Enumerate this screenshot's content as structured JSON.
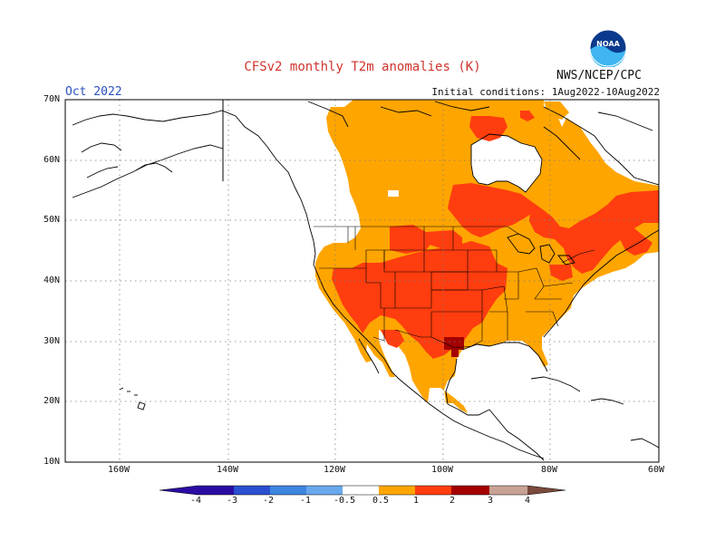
{
  "header": {
    "title": "CFSv2 monthly T2m anomalies (K)",
    "month": "Oct 2022",
    "source": "NWS/NCEP/CPC",
    "initial_conditions": "Initial conditions: 1Aug2022-10Aug2022",
    "logo_text": "NOAA"
  },
  "map": {
    "lat_labels": [
      "70N",
      "60N",
      "50N",
      "40N",
      "30N",
      "20N",
      "10N"
    ],
    "lon_labels": [
      "160W",
      "140W",
      "120W",
      "100W",
      "80W",
      "60W"
    ],
    "colors": {
      "ocean": "#ffffff",
      "coast": "#000000",
      "grid": "#7a7a7a",
      "anom_0_5_1": "#ffa500",
      "anom_1_2": "#ff3d0f",
      "anom_2_3": "#a40000"
    }
  },
  "colorbar": {
    "labels": [
      "-4",
      "-3",
      "-2",
      "-1",
      "-0.5",
      "0.5",
      "1",
      "2",
      "3",
      "4"
    ],
    "colors": [
      "#2b0ca3",
      "#2a4fd1",
      "#3c86e0",
      "#68a8ec",
      "#9ec9f6",
      "#ffffff",
      "#ffa500",
      "#ff3d0f",
      "#a40000",
      "#c9a296",
      "#7a4a3c"
    ]
  }
}
